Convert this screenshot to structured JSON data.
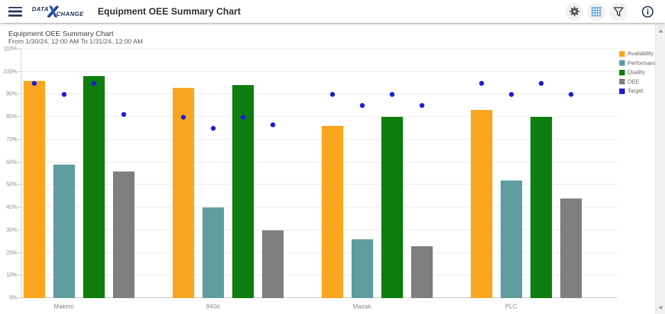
{
  "app_bar": {
    "title": "Equipment OEE Summary Chart",
    "logo": {
      "text_left": "DATA",
      "text_x": "X",
      "text_right": "CHANGE"
    },
    "icons": [
      "settings",
      "grid",
      "filter",
      "info"
    ]
  },
  "chart": {
    "title": "Equipment OEE Summary Chart",
    "subtitle": "From 1/30/24, 12:00 AM To 1/31/24, 12:00 AM"
  },
  "chart_data": {
    "type": "bar",
    "title": "Equipment OEE Summary Chart",
    "subtitle": "From 1/30/24, 12:00 AM To 1/31/24, 12:00 AM",
    "categories": [
      "Makino",
      "840d",
      "Mazak",
      "PLC"
    ],
    "series": [
      {
        "name": "Availability",
        "color": "#FAA61E",
        "values": [
          96,
          93,
          76,
          83
        ]
      },
      {
        "name": "Performance",
        "color": "#5F9D9F",
        "values": [
          59,
          40,
          26,
          52
        ]
      },
      {
        "name": "Quality",
        "color": "#0D7D0D",
        "values": [
          98,
          94,
          80,
          80
        ]
      },
      {
        "name": "OEE",
        "color": "#7F7F7F",
        "values": [
          56,
          30,
          23,
          44
        ]
      }
    ],
    "target": {
      "name": "Target",
      "color": "#1C1CD7",
      "values_by_category": [
        [
          95,
          90,
          95,
          81
        ],
        [
          80,
          75,
          80,
          76.5
        ],
        [
          90,
          85,
          90,
          85
        ],
        [
          95,
          90,
          95,
          90
        ]
      ]
    },
    "legend_entries": [
      "Availability",
      "Performance",
      "Quality",
      "OEE",
      "Target"
    ],
    "legend_position": "top-right",
    "grid": true,
    "ylim": [
      0,
      110
    ],
    "y_ticks": [
      "0%",
      "10%",
      "20%",
      "30%",
      "40%",
      "50%",
      "60%",
      "70%",
      "80%",
      "90%",
      "100%",
      "110%"
    ],
    "xlabel": "",
    "ylabel": ""
  }
}
